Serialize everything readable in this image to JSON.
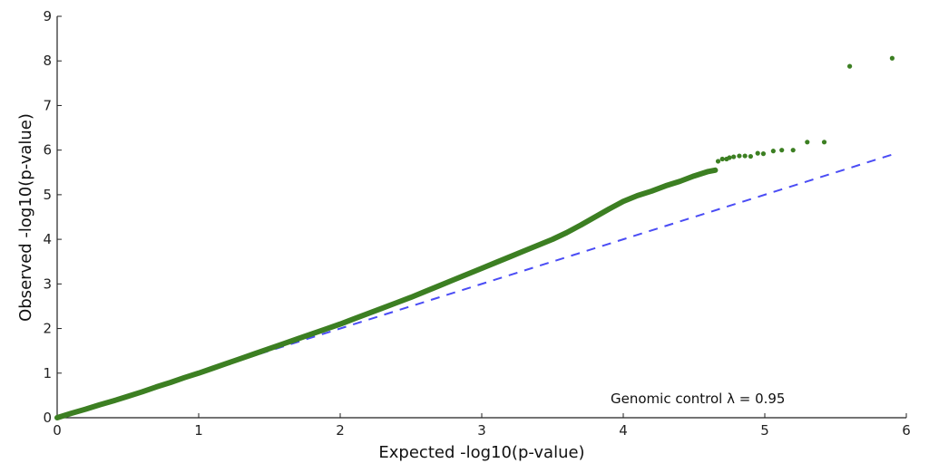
{
  "chart_data": {
    "type": "scatter",
    "title": "",
    "xlabel": "Expected -log10(p-value)",
    "ylabel": "Observed -log10(p-value)",
    "xlim": [
      0,
      6
    ],
    "ylim": [
      0,
      9
    ],
    "xticks": [
      "0",
      "1",
      "2",
      "3",
      "4",
      "5",
      "6"
    ],
    "yticks": [
      "0",
      "1",
      "2",
      "3",
      "4",
      "5",
      "6",
      "7",
      "8",
      "9"
    ],
    "grid": false,
    "annotation": "Genomic control λ = 0.95",
    "colors": {
      "points": "#3c7f22",
      "reference": "#4a4cf5"
    },
    "reference_line": {
      "name": "expected",
      "x": [
        0,
        5.9
      ],
      "y": [
        0,
        5.9
      ],
      "style": "dashed"
    },
    "series": [
      {
        "name": "observed",
        "x": [
          0,
          0.1,
          0.2,
          0.3,
          0.4,
          0.5,
          0.6,
          0.7,
          0.8,
          0.9,
          1.0,
          1.1,
          1.2,
          1.3,
          1.4,
          1.5,
          1.6,
          1.7,
          1.8,
          1.9,
          2.0,
          2.1,
          2.2,
          2.3,
          2.4,
          2.5,
          2.6,
          2.7,
          2.8,
          2.9,
          3.0,
          3.1,
          3.2,
          3.3,
          3.4,
          3.5,
          3.6,
          3.7,
          3.8,
          3.9,
          4.0,
          4.1,
          4.2,
          4.3,
          4.4,
          4.5,
          4.6,
          4.65,
          4.67,
          4.7,
          4.73,
          4.75,
          4.78,
          4.82,
          4.86,
          4.9,
          4.95,
          4.99,
          5.06,
          5.12,
          5.2,
          5.3,
          5.42,
          5.6,
          5.9
        ],
        "y": [
          0,
          0.1,
          0.19,
          0.29,
          0.38,
          0.48,
          0.58,
          0.69,
          0.79,
          0.9,
          1.0,
          1.11,
          1.22,
          1.33,
          1.44,
          1.55,
          1.66,
          1.77,
          1.88,
          1.99,
          2.1,
          2.22,
          2.34,
          2.46,
          2.58,
          2.7,
          2.83,
          2.96,
          3.09,
          3.22,
          3.35,
          3.48,
          3.61,
          3.74,
          3.87,
          4.0,
          4.15,
          4.32,
          4.5,
          4.68,
          4.85,
          4.98,
          5.08,
          5.2,
          5.3,
          5.42,
          5.52,
          5.55,
          5.75,
          5.8,
          5.8,
          5.83,
          5.85,
          5.87,
          5.87,
          5.86,
          5.93,
          5.92,
          5.98,
          6.0,
          6.0,
          6.18,
          6.18,
          7.88,
          8.06
        ]
      }
    ]
  }
}
